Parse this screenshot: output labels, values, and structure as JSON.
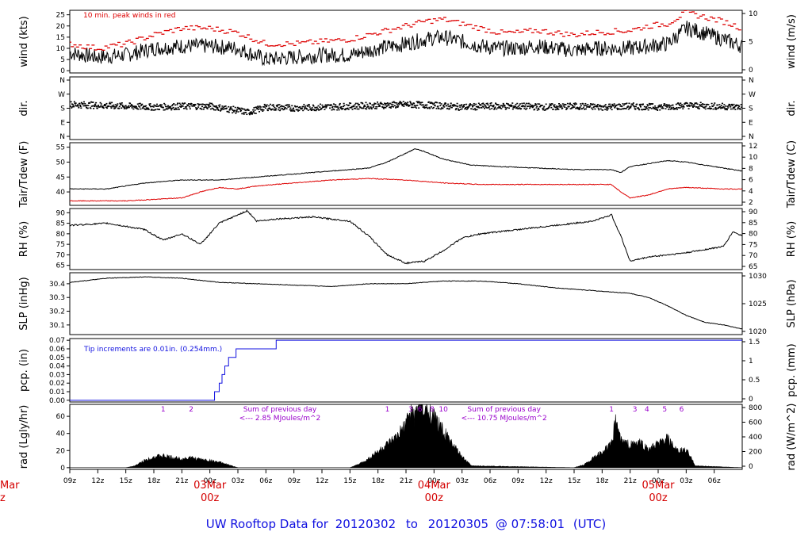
{
  "title": {
    "prefix": "UW Rooftop Data for",
    "start": "20120302",
    "to": "to",
    "end": "20120305",
    "at": "@ 07:58:01",
    "tz": "(UTC)"
  },
  "colors": {
    "black": "#000000",
    "red": "#dd0000",
    "blue": "#1010e0",
    "purple": "#9900cc"
  },
  "x_axis": {
    "hours_span": 54,
    "ticks": [
      "09z",
      "12z",
      "15z",
      "18z",
      "21z",
      "00z",
      "03z",
      "06z",
      "09z",
      "12z",
      "15z",
      "18z",
      "21z",
      "00z",
      "03z",
      "06z",
      "09z",
      "12z",
      "15z",
      "18z",
      "21z",
      "00z",
      "03z",
      "06z"
    ],
    "tick_hours": [
      1,
      4,
      7,
      10,
      13,
      16,
      19,
      22,
      25,
      28,
      31,
      34,
      37,
      40,
      43,
      46,
      49,
      52,
      55,
      58,
      61,
      64,
      67,
      70
    ],
    "dates": [
      {
        "label": "03Mar",
        "sub": "00z",
        "hour": 16
      },
      {
        "label": "04Mar",
        "sub": "00z",
        "hour": 40
      },
      {
        "label": "05Mar",
        "sub": "00z",
        "hour": 64
      }
    ],
    "offpage_date": {
      "label": "Mar",
      "sub": "z"
    }
  },
  "chart_data": [
    {
      "type": "line",
      "panel": "wind",
      "ylabel_left": "wind (kts)",
      "ylabel_right": "wind (m/s)",
      "left_ticks": [
        "0",
        "5",
        "10",
        "15",
        "20",
        "25"
      ],
      "right_ticks": [
        "0",
        "5",
        "10"
      ],
      "ylim": [
        -1,
        27
      ],
      "annotation": "10 min. peak winds in red",
      "series": [
        {
          "name": "wind",
          "color": "#000000",
          "x": [
            0,
            3,
            6,
            9,
            12,
            15,
            18,
            21,
            24,
            27,
            30,
            33,
            36,
            38,
            40,
            42,
            44,
            46,
            48,
            50,
            52,
            54,
            56,
            60,
            62,
            64,
            66,
            67,
            70,
            72
          ],
          "y": [
            8,
            6,
            7,
            10,
            11,
            11,
            10,
            5,
            6,
            7,
            7,
            10,
            12,
            14,
            15,
            13,
            11,
            10,
            10,
            11,
            10,
            9,
            10,
            10,
            11,
            12,
            19,
            18,
            14,
            11
          ]
        },
        {
          "name": "10 min. peak",
          "color": "#dd0000",
          "x": [
            0,
            3,
            6,
            9,
            12,
            15,
            18,
            21,
            24,
            27,
            30,
            33,
            36,
            38,
            40,
            42,
            44,
            46,
            48,
            50,
            52,
            54,
            56,
            60,
            62,
            64,
            66,
            67,
            70,
            72
          ],
          "y": [
            12,
            10,
            12,
            16,
            19,
            19,
            17,
            12,
            12,
            13,
            14,
            17,
            20,
            22,
            23,
            21,
            19,
            17,
            17,
            18,
            17,
            16,
            17,
            18,
            20,
            21,
            26,
            25,
            22,
            19
          ]
        }
      ]
    },
    {
      "type": "scatter",
      "panel": "dir",
      "ylabel_left": "dir.",
      "ylabel_right": "dir.",
      "left_ticks": [
        "N",
        "E",
        "S",
        "W",
        "N"
      ],
      "right_ticks": [
        "N",
        "E",
        "S",
        "W",
        "N"
      ],
      "ylim": [
        0,
        360
      ],
      "series": [
        {
          "name": "dir",
          "color": "#000000",
          "x": [
            0,
            3,
            6,
            9,
            12,
            15,
            18,
            19,
            21,
            24,
            27,
            30,
            33,
            36,
            39,
            42,
            45,
            48,
            51,
            54,
            57,
            60,
            63,
            66,
            69,
            72
          ],
          "y": [
            205,
            200,
            195,
            190,
            195,
            195,
            170,
            160,
            190,
            185,
            190,
            195,
            200,
            205,
            200,
            190,
            195,
            195,
            190,
            195,
            190,
            195,
            190,
            200,
            195,
            190
          ]
        }
      ]
    },
    {
      "type": "line",
      "panel": "temp",
      "ylabel_left": "Tair/Tdew (F)",
      "ylabel_right": "Tair/Tdew (C)",
      "left_ticks": [
        "40",
        "45",
        "50",
        "55"
      ],
      "right_ticks": [
        "2",
        "4",
        "6",
        "8",
        "10",
        "12"
      ],
      "ylim": [
        35.5,
        56.5
      ],
      "series": [
        {
          "name": "Tair",
          "color": "#000000",
          "x": [
            0,
            4,
            8,
            12,
            16,
            20,
            24,
            28,
            32,
            34,
            36,
            37,
            38,
            40,
            43,
            46,
            50,
            54,
            58,
            59,
            60,
            64,
            66,
            70,
            72
          ],
          "y": [
            41,
            41,
            43,
            44,
            44,
            45,
            46,
            47,
            48,
            50,
            53,
            54.5,
            53.5,
            51,
            49,
            48.5,
            48,
            47.5,
            47.5,
            46.5,
            48.5,
            50.5,
            50,
            48,
            47
          ]
        },
        {
          "name": "Tdew",
          "color": "#dd0000",
          "x": [
            0,
            6,
            12,
            14,
            16,
            18,
            20,
            24,
            28,
            32,
            36,
            40,
            44,
            48,
            52,
            58,
            59,
            60,
            62,
            64,
            66,
            70,
            72
          ],
          "y": [
            37,
            37,
            38,
            40,
            41.5,
            41,
            42,
            43,
            44,
            44.5,
            44,
            43,
            42.5,
            42.5,
            42.5,
            42.5,
            40,
            38,
            39,
            41,
            41.5,
            41,
            41
          ]
        }
      ]
    },
    {
      "type": "line",
      "panel": "rh",
      "ylabel_left": "RH (%)",
      "ylabel_right": "RH (%)",
      "left_ticks": [
        "65",
        "70",
        "75",
        "80",
        "85",
        "90"
      ],
      "right_ticks": [
        "65",
        "70",
        "75",
        "80",
        "85",
        "90"
      ],
      "ylim": [
        63,
        92
      ],
      "series": [
        {
          "name": "RH",
          "color": "#000000",
          "x": [
            0,
            4,
            8,
            10,
            12,
            14,
            16,
            18,
            19,
            20,
            22,
            26,
            30,
            32,
            34,
            36,
            38,
            40,
            42,
            44,
            48,
            52,
            56,
            58,
            59,
            60,
            62,
            66,
            70,
            71,
            72
          ],
          "y": [
            84,
            85,
            82,
            77,
            80,
            75,
            85,
            89,
            91,
            86,
            87,
            88,
            86,
            79,
            70,
            66,
            67,
            72,
            78,
            80,
            82,
            84,
            86,
            89,
            79,
            67,
            69,
            71,
            74,
            81,
            79
          ]
        }
      ]
    },
    {
      "type": "line",
      "panel": "slp",
      "ylabel_left": "SLP (inHg)",
      "ylabel_right": "SLP (hPa)",
      "left_ticks": [
        "30.1",
        "30.2",
        "30.3",
        "30.4"
      ],
      "right_ticks": [
        "1020",
        "1025",
        "1030"
      ],
      "ylim": [
        30.03,
        30.48
      ],
      "series": [
        {
          "name": "SLP",
          "color": "#000000",
          "x": [
            0,
            4,
            8,
            12,
            16,
            20,
            24,
            28,
            32,
            36,
            40,
            44,
            48,
            52,
            56,
            60,
            62,
            64,
            66,
            68,
            70,
            72
          ],
          "y": [
            30.41,
            30.44,
            30.45,
            30.44,
            30.41,
            30.4,
            30.39,
            30.38,
            30.4,
            30.4,
            30.42,
            30.42,
            30.4,
            30.37,
            30.35,
            30.33,
            30.3,
            30.24,
            30.17,
            30.12,
            30.1,
            30.07
          ]
        }
      ]
    },
    {
      "type": "line",
      "panel": "pcp",
      "ylabel_left": "pcp. (in)",
      "ylabel_right": "pcp. (mm)",
      "left_ticks": [
        "0.00",
        "0.01",
        "0.02",
        "0.03",
        "0.04",
        "0.05",
        "0.06",
        "0.07"
      ],
      "right_ticks": [
        "0",
        "0.5",
        "1",
        "1.5"
      ],
      "ylim": [
        -0.002,
        0.072
      ],
      "annotation": "Tip increments are 0.01in. (0.254mm.)",
      "series": [
        {
          "name": "pcp",
          "color": "#1010e0",
          "x": [
            0,
            15,
            15.5,
            16,
            16.3,
            16.6,
            17,
            17.3,
            17.8,
            22,
            22.1,
            72
          ],
          "y": [
            0,
            0,
            0.01,
            0.02,
            0.03,
            0.04,
            0.05,
            0.05,
            0.06,
            0.06,
            0.07,
            0.07
          ]
        }
      ]
    },
    {
      "type": "area",
      "panel": "rad",
      "ylabel_left": "rad (Lgly/hr)",
      "ylabel_right": "rad (W/m^2)",
      "left_ticks": [
        "0",
        "20",
        "40",
        "60"
      ],
      "right_ticks": [
        "0",
        "200",
        "400",
        "600",
        "800"
      ],
      "ylim": [
        -2,
        74
      ],
      "day_notes": [
        {
          "text": "Sum of previous day",
          "text2": "<--- 2.85 MJoules/m^2",
          "hour": 22.5
        },
        {
          "text": "Sum of previous day",
          "text2": "<--- 10.75 MJoules/m^2",
          "hour": 46.5
        }
      ],
      "markers": [
        {
          "label": "1",
          "hour": 10
        },
        {
          "label": "2",
          "hour": 13
        },
        {
          "label": "1",
          "hour": 34
        },
        {
          "label": "3",
          "hour": 36.5
        },
        {
          "label": "6",
          "hour": 37.5
        },
        {
          "label": "8",
          "hour": 38.8
        },
        {
          "label": "10",
          "hour": 40
        },
        {
          "label": "1",
          "hour": 58
        },
        {
          "label": "3",
          "hour": 60.5
        },
        {
          "label": "4",
          "hour": 61.8
        },
        {
          "label": "5",
          "hour": 63.7
        },
        {
          "label": "6",
          "hour": 65.5
        }
      ],
      "series": [
        {
          "name": "rad",
          "color": "#000000",
          "x": [
            0,
            6,
            7,
            8,
            9,
            10,
            11,
            12,
            13,
            14,
            15,
            16,
            17,
            18,
            30,
            31,
            32,
            33,
            34,
            35,
            36,
            36.5,
            37,
            37.5,
            38,
            38.5,
            39,
            40,
            41,
            42,
            43,
            54,
            55,
            56,
            57,
            58,
            58.5,
            59,
            60,
            61,
            62,
            63,
            64,
            65,
            66,
            67,
            72
          ],
          "y": [
            0,
            0,
            2,
            8,
            12,
            13,
            11,
            10,
            11,
            9,
            8,
            6,
            3,
            0,
            0,
            4,
            10,
            18,
            25,
            33,
            48,
            62,
            58,
            72,
            60,
            65,
            55,
            40,
            25,
            12,
            2,
            0,
            3,
            10,
            18,
            25,
            55,
            30,
            25,
            28,
            20,
            26,
            32,
            18,
            20,
            2,
            0
          ]
        }
      ]
    }
  ]
}
